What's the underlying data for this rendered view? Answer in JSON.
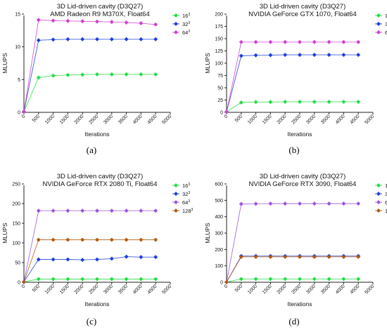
{
  "charts": [
    {
      "title": "3D Lid-driven cavity (D3Q27)",
      "subtitle": "AMD Radeon R9 M370X, Float64",
      "caption": "(a)",
      "chart_data": {
        "type": "line",
        "xlabel": "Iterations",
        "ylabel": "MLUPS",
        "xlim": [
          0,
          5000
        ],
        "ylim": [
          0,
          15
        ],
        "xticks": [
          "0",
          "500",
          "1000",
          "1500",
          "2000",
          "2500",
          "3000",
          "3500",
          "4000",
          "4500",
          "5000"
        ],
        "yticks": [
          "0",
          "5",
          "10",
          "15"
        ],
        "legend_position": "top-right",
        "x": [
          0,
          500,
          1000,
          1500,
          2000,
          2500,
          3000,
          3500,
          4000,
          4500
        ],
        "series": [
          {
            "name": "16",
            "exp": "3",
            "color": "#22dd44",
            "values": [
              0.1,
              5.3,
              5.6,
              5.7,
              5.75,
              5.8,
              5.8,
              5.8,
              5.8,
              5.8
            ]
          },
          {
            "name": "32",
            "exp": "3",
            "color": "#1f3fd8",
            "values": [
              0.1,
              11.0,
              11.1,
              11.15,
              11.15,
              11.15,
              11.15,
              11.15,
              11.15,
              11.15
            ]
          },
          {
            "name": "64",
            "exp": "3",
            "color": "#d040d0",
            "values": [
              0.1,
              14.1,
              14.0,
              13.95,
              13.9,
              13.85,
              13.8,
              13.7,
              13.6,
              13.4
            ]
          }
        ]
      }
    },
    {
      "title": "3D Lid-driven cavity (D3Q27)",
      "subtitle": "NVIDIA GeForce GTX 1070, Float64",
      "caption": "(b)",
      "chart_data": {
        "type": "line",
        "xlabel": "Iterations",
        "ylabel": "MLUPS",
        "xlim": [
          0,
          5000
        ],
        "ylim": [
          0,
          200
        ],
        "xticks": [
          "0",
          "500",
          "1000",
          "1500",
          "2000",
          "2500",
          "3000",
          "3500",
          "4000",
          "4500",
          "5000"
        ],
        "yticks": [
          "0",
          "25",
          "50",
          "75",
          "100",
          "125",
          "150",
          "175",
          "200"
        ],
        "legend_position": "top-right",
        "x": [
          0,
          500,
          1000,
          1500,
          2000,
          2500,
          3000,
          3500,
          4000,
          4500
        ],
        "series": [
          {
            "name": "16",
            "exp": "3",
            "color": "#22dd44",
            "values": [
              1,
              20,
              21,
              21,
              21.5,
              21.5,
              21.5,
              21.5,
              21.5,
              21.5
            ]
          },
          {
            "name": "32",
            "exp": "3",
            "color": "#1f3fd8",
            "values": [
              1,
              115,
              116,
              116.5,
              117,
              117,
              117,
              117,
              117,
              117
            ]
          },
          {
            "name": "64",
            "exp": "3",
            "color": "#d040d0",
            "values": [
              1,
              143,
              143,
              143,
              143,
              143,
              143,
              143,
              143,
              143
            ]
          }
        ]
      }
    },
    {
      "title": "3D Lid-driven cavity (D3Q27)",
      "subtitle": "NVIDIA GeForce RTX 2080 Ti, Float64",
      "caption": "(c)",
      "chart_data": {
        "type": "line",
        "xlabel": "Iterations",
        "ylabel": "MLUPS",
        "xlim": [
          0,
          5000
        ],
        "ylim": [
          0,
          250
        ],
        "xticks": [
          "0",
          "500",
          "1000",
          "1500",
          "2000",
          "2500",
          "3000",
          "3500",
          "4000",
          "4500",
          "5000"
        ],
        "yticks": [
          "0",
          "50",
          "100",
          "150",
          "200",
          "250"
        ],
        "legend_position": "top-right",
        "x": [
          0,
          500,
          1000,
          1500,
          2000,
          2500,
          3000,
          3500,
          4000,
          4500
        ],
        "series": [
          {
            "name": "16",
            "exp": "3",
            "color": "#22dd44",
            "values": [
              1,
              8,
              8,
              8,
              8,
              8,
              8,
              8,
              8,
              8
            ]
          },
          {
            "name": "32",
            "exp": "3",
            "color": "#1f3fd8",
            "values": [
              1,
              58,
              58,
              58,
              57,
              58,
              60,
              65,
              64,
              64
            ]
          },
          {
            "name": "64",
            "exp": "3",
            "color": "#9a55e0",
            "values": [
              1,
              182,
              182,
              182,
              182,
              182,
              182,
              182,
              182,
              182
            ]
          },
          {
            "name": "128",
            "exp": "3",
            "color": "#b05a10",
            "values": [
              1,
              108,
              108,
              108,
              108,
              108,
              108,
              108,
              108,
              108
            ]
          }
        ]
      }
    },
    {
      "title": "3D Lid-driven cavity (D3Q27)",
      "subtitle": "NVIDIA GeForce RTX 3090, Float64",
      "caption": "(d)",
      "chart_data": {
        "type": "line",
        "xlabel": "Iterations",
        "ylabel": "MLUPS",
        "xlim": [
          0,
          5000
        ],
        "ylim": [
          0,
          600
        ],
        "xticks": [
          "0",
          "500",
          "1000",
          "1500",
          "2000",
          "2500",
          "3000",
          "3500",
          "4000",
          "4500",
          "5000"
        ],
        "yticks": [
          "0",
          "100",
          "200",
          "300",
          "400",
          "500",
          "600"
        ],
        "legend_position": "top-right",
        "x": [
          0,
          500,
          1000,
          1500,
          2000,
          2500,
          3000,
          3500,
          4000,
          4500
        ],
        "series": [
          {
            "name": "16",
            "exp": "3",
            "color": "#22dd44",
            "values": [
              1,
              20,
              20,
              20,
              20,
              20,
              20,
              20,
              20,
              20
            ]
          },
          {
            "name": "32",
            "exp": "3",
            "color": "#1f3fd8",
            "values": [
              1,
              160,
              160,
              160,
              160,
              160,
              160,
              160,
              160,
              160
            ]
          },
          {
            "name": "64",
            "exp": "3",
            "color": "#9a55e0",
            "values": [
              1,
              478,
              479,
              480,
              480,
              480,
              480,
              480,
              480,
              480
            ]
          },
          {
            "name": "128",
            "exp": "3",
            "color": "#b05a10",
            "values": [
              1,
              155,
              155,
              155,
              155,
              155,
              155,
              155,
              155,
              155
            ]
          }
        ]
      }
    }
  ]
}
